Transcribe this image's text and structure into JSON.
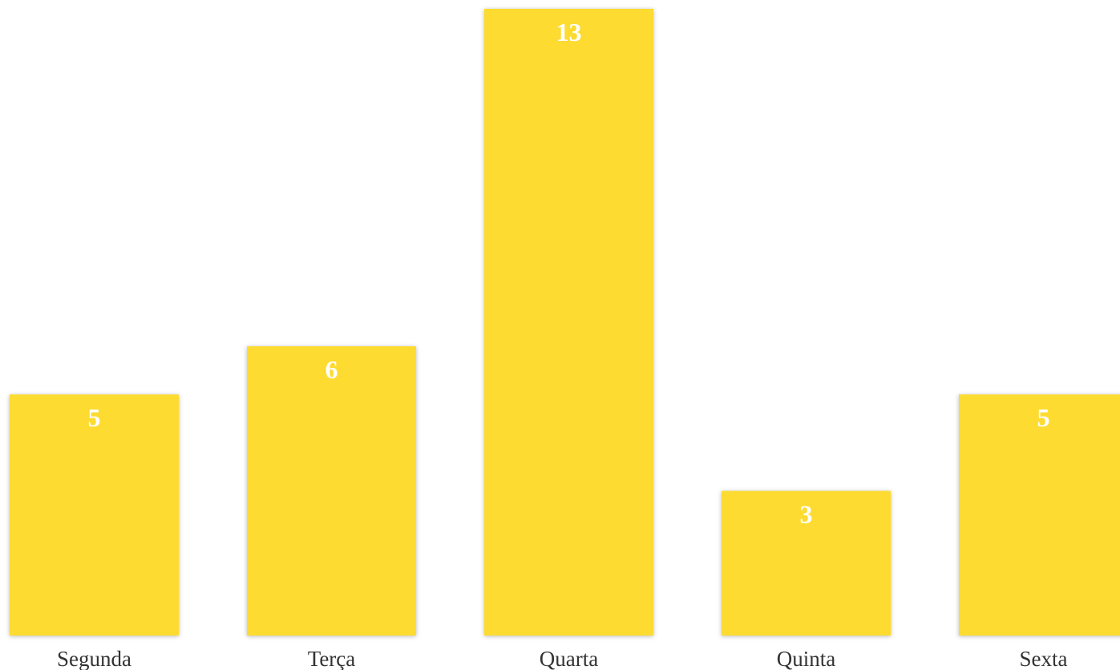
{
  "chart_data": {
    "type": "bar",
    "categories": [
      "Segunda",
      "Terça",
      "Quarta",
      "Quinta",
      "Sexta"
    ],
    "values": [
      5,
      6,
      13,
      3,
      5
    ],
    "title": "",
    "xlabel": "",
    "ylabel": "",
    "ylim": [
      0,
      13
    ],
    "grid": false,
    "legend": "none",
    "data_labels": "inside-top",
    "bar_color": "#FDDB30",
    "label_color": "#FFFFFF"
  }
}
